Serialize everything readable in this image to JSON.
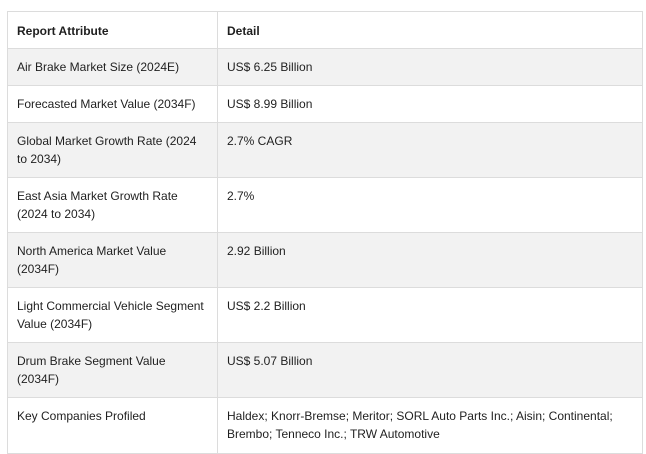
{
  "table": {
    "headers": [
      "Report Attribute",
      "Detail"
    ],
    "rows": [
      {
        "attribute": "Air Brake Market Size (2024E)",
        "detail": "US$ 6.25 Billion"
      },
      {
        "attribute": "Forecasted Market Value (2034F)",
        "detail": "US$ 8.99 Billion"
      },
      {
        "attribute": "Global Market Growth Rate (2024 to 2034)",
        "detail": "2.7% CAGR"
      },
      {
        "attribute": "East Asia Market Growth Rate (2024 to 2034)",
        "detail": "2.7%"
      },
      {
        "attribute": "North America Market Value (2034F)",
        "detail": "2.92 Billion"
      },
      {
        "attribute": "Light Commercial Vehicle Segment Value (2034F)",
        "detail": "US$ 2.2 Billion"
      },
      {
        "attribute": "Drum Brake Segment Value (2034F)",
        "detail": "US$ 5.07 Billion"
      },
      {
        "attribute": "Key Companies Profiled",
        "detail": "Haldex; Knorr-Bremse; Meritor; SORL Auto Parts Inc.; Aisin; Continental; Brembo; Tenneco Inc.; TRW Automotive"
      }
    ]
  }
}
